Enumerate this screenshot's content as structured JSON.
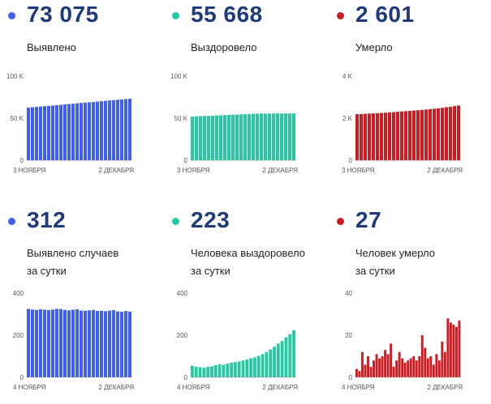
{
  "panels": [
    {
      "value": "73 075",
      "label_lines": [
        "Выявлено"
      ],
      "color": "#3f5ff2",
      "chart_data": {
        "type": "bar",
        "title": "",
        "xlabel": "",
        "ylabel": "",
        "x_tick_labels": [
          "3 НОЯБРЯ",
          "2 ДЕКАБРЯ"
        ],
        "y_ticks": [
          0,
          50000,
          100000
        ],
        "y_tick_labels": [
          "0",
          "50 K",
          "100 K"
        ],
        "ylim": [
          0,
          100000
        ],
        "grid": false,
        "values": [
          62500,
          62950,
          63380,
          63800,
          64230,
          64650,
          65080,
          65510,
          65940,
          66360,
          66800,
          67230,
          67650,
          68080,
          68500,
          68930,
          69360,
          69780,
          70200,
          70630,
          71050,
          71470,
          71900,
          72330,
          72750,
          73075
        ]
      }
    },
    {
      "value": "55 668",
      "label_lines": [
        "Выздоровело"
      ],
      "color": "#27c9a3",
      "chart_data": {
        "type": "bar",
        "title": "",
        "xlabel": "",
        "ylabel": "",
        "x_tick_labels": [
          "3 НОЯБРЯ",
          "2 ДЕКАБРЯ"
        ],
        "y_ticks": [
          0,
          50000,
          100000
        ],
        "y_tick_labels": [
          "0",
          "50 K",
          "100 K"
        ],
        "ylim": [
          0,
          100000
        ],
        "grid": false,
        "values": [
          52000,
          52200,
          52420,
          52640,
          52850,
          53060,
          53280,
          53490,
          53700,
          53920,
          54130,
          54340,
          54560,
          54770,
          54980,
          55200,
          55410,
          55500,
          55560,
          55600,
          55620,
          55640,
          55650,
          55660,
          55665,
          55668
        ]
      }
    },
    {
      "value": "2 601",
      "label_lines": [
        "Умерло"
      ],
      "color": "#d11a1f",
      "chart_data": {
        "type": "bar",
        "title": "",
        "xlabel": "",
        "ylabel": "",
        "x_tick_labels": [
          "3 НОЯБРЯ",
          "2 ДЕКАБРЯ"
        ],
        "y_ticks": [
          0,
          2000,
          4000
        ],
        "y_tick_labels": [
          "0",
          "2 K",
          "4 K"
        ],
        "ylim": [
          0,
          4000
        ],
        "grid": false,
        "values": [
          2190,
          2200,
          2210,
          2220,
          2230,
          2240,
          2250,
          2262,
          2275,
          2290,
          2305,
          2320,
          2335,
          2350,
          2365,
          2380,
          2395,
          2412,
          2430,
          2450,
          2470,
          2495,
          2520,
          2545,
          2575,
          2601
        ]
      }
    },
    {
      "value": "312",
      "label_lines": [
        "Выявлено случаев",
        "за сутки"
      ],
      "color": "#3f5ff2",
      "chart_data": {
        "type": "bar",
        "title": "",
        "xlabel": "",
        "ylabel": "",
        "x_tick_labels": [
          "4 НОЯБРЯ",
          "2 ДЕКАБРЯ"
        ],
        "y_ticks": [
          0,
          200,
          400
        ],
        "y_tick_labels": [
          "0",
          "200",
          "400"
        ],
        "ylim": [
          0,
          400
        ],
        "grid": false,
        "values": [
          325,
          322,
          320,
          323,
          321,
          319,
          322,
          325,
          324,
          320,
          318,
          321,
          323,
          317,
          316,
          318,
          320,
          315,
          316,
          314,
          317,
          319,
          313,
          311,
          315,
          312
        ]
      }
    },
    {
      "value": "223",
      "label_lines": [
        "Человека выздоровело",
        "за сутки"
      ],
      "color": "#27c9a3",
      "chart_data": {
        "type": "bar",
        "title": "",
        "xlabel": "",
        "ylabel": "",
        "x_tick_labels": [
          "4 НОЯБРЯ",
          "2 ДЕКАБРЯ"
        ],
        "y_ticks": [
          0,
          200,
          400
        ],
        "y_tick_labels": [
          "0",
          "200",
          "400"
        ],
        "ylim": [
          0,
          400
        ],
        "grid": false,
        "values": [
          55,
          50,
          48,
          45,
          50,
          52,
          58,
          62,
          60,
          65,
          70,
          72,
          75,
          80,
          85,
          90,
          95,
          102,
          110,
          120,
          132,
          145,
          160,
          172,
          190,
          205,
          223
        ]
      }
    },
    {
      "value": "27",
      "label_lines": [
        "Человек умерло",
        "за сутки"
      ],
      "color": "#d11a1f",
      "chart_data": {
        "type": "bar",
        "title": "",
        "xlabel": "",
        "ylabel": "",
        "x_tick_labels": [
          "4 НОЯБРЯ",
          "2 ДЕКАБРЯ"
        ],
        "y_ticks": [
          0,
          20,
          40
        ],
        "y_tick_labels": [
          "0",
          "20",
          "40"
        ],
        "ylim": [
          0,
          40
        ],
        "grid": false,
        "values": [
          4,
          3,
          12,
          6,
          10,
          5,
          8,
          11,
          9,
          10,
          13,
          11,
          16,
          5,
          8,
          12,
          9,
          7,
          8,
          9,
          10,
          8,
          10,
          20,
          14,
          9,
          10,
          6,
          11,
          8,
          17,
          12,
          28,
          26,
          25,
          24,
          27
        ]
      }
    }
  ]
}
